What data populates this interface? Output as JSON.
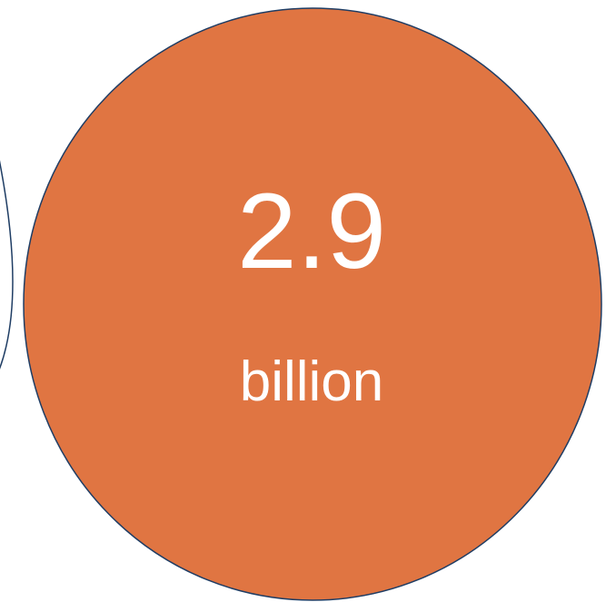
{
  "bubbles": {
    "main": {
      "value": "2.9",
      "unit": "billion",
      "fill_color": "#E07542",
      "stroke_color": "#1F3D64",
      "text_color": "#FFFFFF"
    },
    "left_partial": {
      "stroke_color": "#1F3D64"
    }
  },
  "page": {
    "background": "#FFFFFF"
  }
}
